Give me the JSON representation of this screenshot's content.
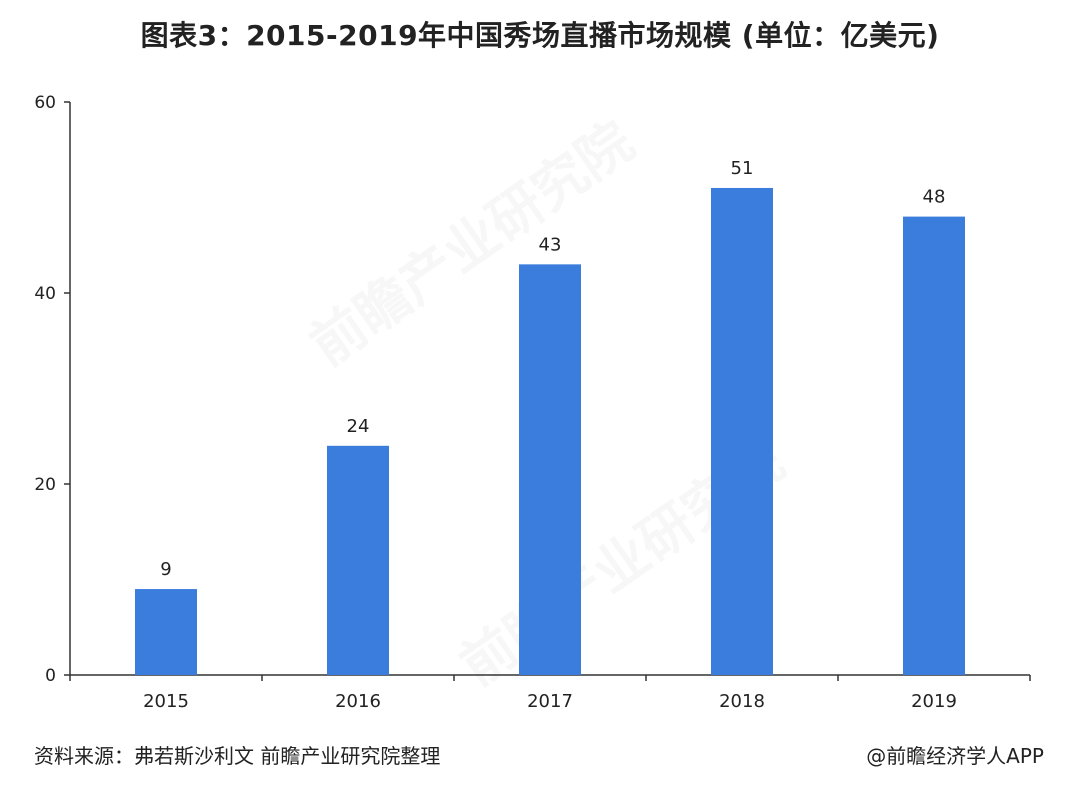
{
  "title": "图表3：2015-2019年中国秀场直播市场规模 (单位：亿美元)",
  "footer": {
    "source": "资料来源：弗若斯沙利文 前瞻产业研究院整理",
    "credit": "@前瞻经济学人APP"
  },
  "watermark_text": "前瞻产业研究院",
  "colors": {
    "bar": "#3b7ddd",
    "axis": "#333333",
    "text": "#222222"
  },
  "chart_data": {
    "type": "bar",
    "title": "图表3：2015-2019年中国秀场直播市场规模 (单位：亿美元)",
    "categories": [
      "2015",
      "2016",
      "2017",
      "2018",
      "2019"
    ],
    "values": [
      9,
      24,
      43,
      51,
      48
    ],
    "data_labels": [
      "9",
      "24",
      "43",
      "51",
      "48"
    ],
    "xlabel": "",
    "ylabel": "",
    "ylim": [
      0,
      60
    ],
    "yticks": [
      0,
      20,
      40,
      60
    ],
    "grid": false,
    "legend": "none"
  }
}
